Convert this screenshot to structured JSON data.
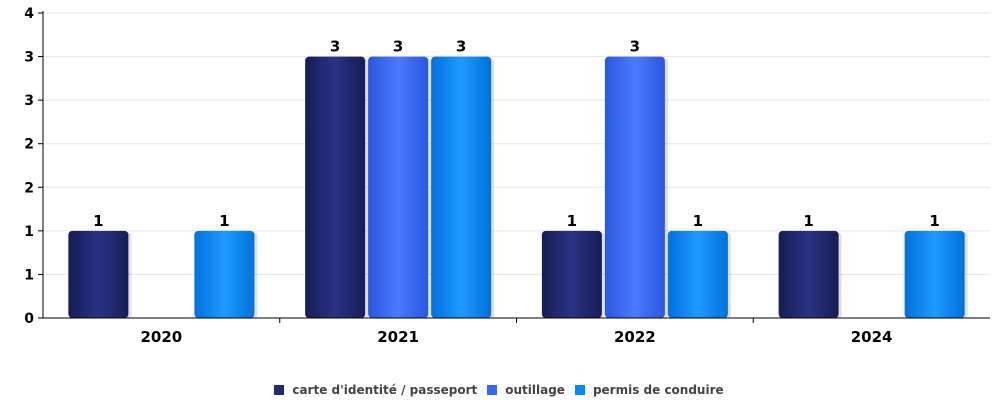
{
  "chart_data": {
    "type": "bar",
    "categories": [
      "2020",
      "2021",
      "2022",
      "2024"
    ],
    "y_tick_labels": [
      "0",
      "1",
      "1",
      "2",
      "2",
      "3",
      "3",
      "4"
    ],
    "ylim": [
      0,
      3.5
    ],
    "grid": true,
    "legend_position": "bottom",
    "series": [
      {
        "name": "carte d'identité / passeport",
        "color": "#222a6e",
        "values": [
          1,
          3,
          1,
          1
        ]
      },
      {
        "name": "outillage",
        "color": "#3366ff",
        "values": [
          null,
          3,
          3,
          null
        ]
      },
      {
        "name": "permis de conduire",
        "color": "#0088ff",
        "values": [
          1,
          3,
          1,
          1
        ]
      }
    ]
  }
}
